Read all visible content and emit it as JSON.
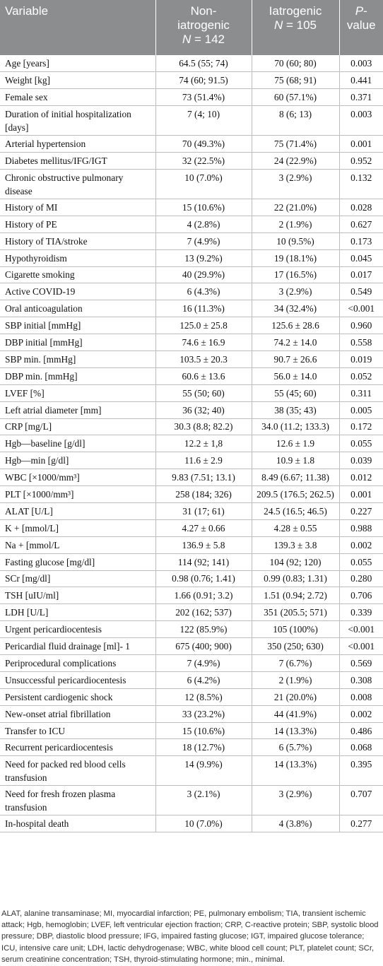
{
  "headers": {
    "variable": "Variable",
    "noniatro_line1": "Non-",
    "noniatro_line2": "iatrogenic",
    "noniatro_n": "N",
    "noniatro_nval": " = 142",
    "iatro_line1": "Iatrogenic",
    "iatro_n": "N",
    "iatro_nval": " = 105",
    "p_line1": "P",
    "p_line1b": "-",
    "p_line2": "value"
  },
  "rows": [
    {
      "v": "Age [years]",
      "a": "64.5 (55; 74)",
      "b": "70 (60; 80)",
      "p": "0.003"
    },
    {
      "v": "Weight [kg]",
      "a": "74 (60; 91.5)",
      "b": "75 (68; 91)",
      "p": "0.441"
    },
    {
      "v": "Female sex",
      "a": "73 (51.4%)",
      "b": "60 (57.1%)",
      "p": "0.371"
    },
    {
      "v": "Duration of initial hospitalization [days]",
      "a": "7 (4; 10)",
      "b": "8 (6; 13)",
      "p": "0.003",
      "two": true
    },
    {
      "v": "Arterial hypertension",
      "a": "70 (49.3%)",
      "b": "75 (71.4%)",
      "p": "0.001"
    },
    {
      "v": "Diabetes mellitus/IFG/IGT",
      "a": "32 (22.5%)",
      "b": "24 (22.9%)",
      "p": "0.952"
    },
    {
      "v": "Chronic obstructive pulmonary disease",
      "a": "10 (7.0%)",
      "b": "3 (2.9%)",
      "p": "0.132",
      "two": true
    },
    {
      "v": "History of MI",
      "a": "15 (10.6%)",
      "b": "22 (21.0%)",
      "p": "0.028"
    },
    {
      "v": "History of PE",
      "a": "4 (2.8%)",
      "b": "2 (1.9%)",
      "p": "0.627"
    },
    {
      "v": "History of TIA/stroke",
      "a": "7 (4.9%)",
      "b": "10 (9.5%)",
      "p": "0.173"
    },
    {
      "v": "Hypothyroidism",
      "a": "13 (9.2%)",
      "b": "19 (18.1%)",
      "p": "0.045"
    },
    {
      "v": "Cigarette smoking",
      "a": "40 (29.9%)",
      "b": "17 (16.5%)",
      "p": "0.017"
    },
    {
      "v": "Active COVID-19",
      "a": "6 (4.3%)",
      "b": "3 (2.9%)",
      "p": "0.549"
    },
    {
      "v": "Oral anticoagulation",
      "a": "16 (11.3%)",
      "b": "34 (32.4%)",
      "p": "<0.001"
    },
    {
      "v": "SBP initial [mmHg]",
      "a": "125.0 ± 25.8",
      "b": "125.6 ± 28.6",
      "p": "0.960"
    },
    {
      "v": "DBP initial [mmHg]",
      "a": "74.6 ± 16.9",
      "b": "74.2 ± 14.0",
      "p": "0.558"
    },
    {
      "v": "SBP min. [mmHg]",
      "a": "103.5 ± 20.3",
      "b": "90.7 ± 26.6",
      "p": "0.019"
    },
    {
      "v": "DBP min. [mmHg]",
      "a": "60.6 ± 13.6",
      "b": "56.0 ± 14.0",
      "p": "0.052"
    },
    {
      "v": "LVEF [%]",
      "a": "55 (50; 60)",
      "b": "55 (45; 60)",
      "p": "0.311"
    },
    {
      "v": "Left atrial diameter [mm]",
      "a": "36 (32; 40)",
      "b": "38 (35; 43)",
      "p": "0.005"
    },
    {
      "v": "CRP [mg/L]",
      "a": "30.3 (8.8; 82.2)",
      "b": "34.0 (11.2; 133.3)",
      "p": "0.172"
    },
    {
      "v": "Hgb—baseline [g/dl]",
      "a": "12.2 ± 1,8",
      "b": "12.6 ± 1.9",
      "p": "0.055"
    },
    {
      "v": "Hgb—min [g/dl]",
      "a": "11.6 ± 2.9",
      "b": "10.9 ± 1.8",
      "p": "0.039"
    },
    {
      "v": "WBC [×1000/mm³]",
      "a": "9.83 (7.51; 13.1)",
      "b": "8.49 (6.67; 11.38)",
      "p": "0.012"
    },
    {
      "v": "PLT [×1000/mm³]",
      "a": "258 (184; 326)",
      "b": "209.5 (176.5; 262.5)",
      "p": "0.001"
    },
    {
      "v": "ALAT [U/L]",
      "a": "31 (17; 61)",
      "b": "24.5 (16.5; 46.5)",
      "p": "0.227"
    },
    {
      "v": "K + [mmol/L]",
      "a": "4.27 ± 0.66",
      "b": "4.28 ± 0.55",
      "p": "0.988"
    },
    {
      "v": "Na + [mmol/L",
      "a": "136.9 ± 5.8",
      "b": "139.3 ± 3.8",
      "p": "0.002"
    },
    {
      "v": "Fasting glucose [mg/dl]",
      "a": "114 (92; 141)",
      "b": "104 (92; 120)",
      "p": "0.055"
    },
    {
      "v": "SCr [mg/dl]",
      "a": "0.98 (0.76; 1.41)",
      "b": "0.99 (0.83; 1.31)",
      "p": "0.280"
    },
    {
      "v": "TSH [uIU/ml]",
      "a": "1.66 (0.91; 3.2)",
      "b": "1.51 (0.94; 2.72)",
      "p": "0.706"
    },
    {
      "v": "LDH [U/L]",
      "a": "202 (162; 537)",
      "b": "351 (205.5; 571)",
      "p": "0.339"
    },
    {
      "v": "Urgent pericardiocentesis",
      "a": "122 (85.9%)",
      "b": "105 (100%)",
      "p": "<0.001"
    },
    {
      "v": "Pericardial fluid drainage [ml]- 1",
      "a": "675 (400; 900)",
      "b": "350 (250; 630)",
      "p": "<0.001"
    },
    {
      "v": "Periprocedural complications",
      "a": "7 (4.9%)",
      "b": "7 (6.7%)",
      "p": "0.569"
    },
    {
      "v": "Unsuccessful pericardiocentesis",
      "a": "6 (4.2%)",
      "b": "2 (1.9%)",
      "p": "0.308"
    },
    {
      "v": "Persistent cardiogenic shock",
      "a": "12 (8.5%)",
      "b": "21 (20.0%)",
      "p": "0.008"
    },
    {
      "v": "New-onset atrial fibrillation",
      "a": "33 (23.2%)",
      "b": "44 (41.9%)",
      "p": "0.002"
    },
    {
      "v": "Transfer to ICU",
      "a": "15 (10.6%)",
      "b": "14 (13.3%)",
      "p": "0.486"
    },
    {
      "v": "Recurrent pericardiocentesis",
      "a": "18 (12.7%)",
      "b": "6 (5.7%)",
      "p": "0.068"
    },
    {
      "v": "Need for packed red blood cells transfusion",
      "a": "14 (9.9%)",
      "b": "14 (13.3%)",
      "p": "0.395",
      "two": true
    },
    {
      "v": "Need for fresh frozen plasma transfusion",
      "a": "3 (2.1%)",
      "b": "3 (2.9%)",
      "p": "0.707",
      "two": true
    },
    {
      "v": "In-hospital death",
      "a": "10 (7.0%)",
      "b": "4 (3.8%)",
      "p": "0.277"
    }
  ],
  "footnote": "ALAT, alanine transaminase; MI, myocardial infarction; PE, pulmonary embolism; TIA, transient ischemic attack; Hgb, hemoglobin; LVEF, left ventricular ejection fraction; CRP, C-reactive protein; SBP, systolic blood pressure; DBP, diastolic blood pressure; IFG, impaired fasting glucose; IGT, impaired glucose tolerance; ICU, intensive care unit; LDH, lactic dehydrogenase; WBC, white blood cell count; PLT, platelet count; SCr, serum creatinine concentration; TSH, thyroid-stimulating hormone; min., minimal."
}
